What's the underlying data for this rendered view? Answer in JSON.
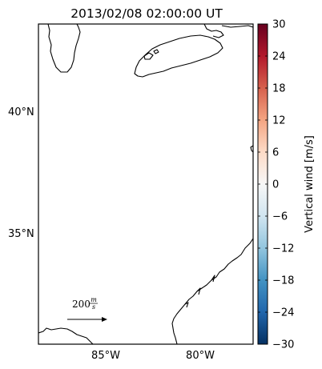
{
  "title": "2013/02/08 02:00:00 UT",
  "lat_labels": [
    "40°N",
    "35°N"
  ],
  "lon_labels": [
    "85°W",
    "80°W"
  ],
  "scale_arrow": {
    "value": "200",
    "unit_num": "m",
    "unit_den": "s"
  },
  "colorbar": {
    "label": "Vertical wind [m/s]",
    "ticks": [
      "30",
      "24",
      "18",
      "12",
      "6",
      "0",
      "−6",
      "−12",
      "−18",
      "−24",
      "−30"
    ],
    "colors": [
      "#67001f",
      "#b2182b",
      "#d6604d",
      "#f4a582",
      "#fddbc7",
      "#f7f7f7",
      "#d1e5f0",
      "#92c5de",
      "#4393c3",
      "#2166ac",
      "#053061"
    ]
  },
  "map": {
    "coastline_color": "#000000"
  }
}
